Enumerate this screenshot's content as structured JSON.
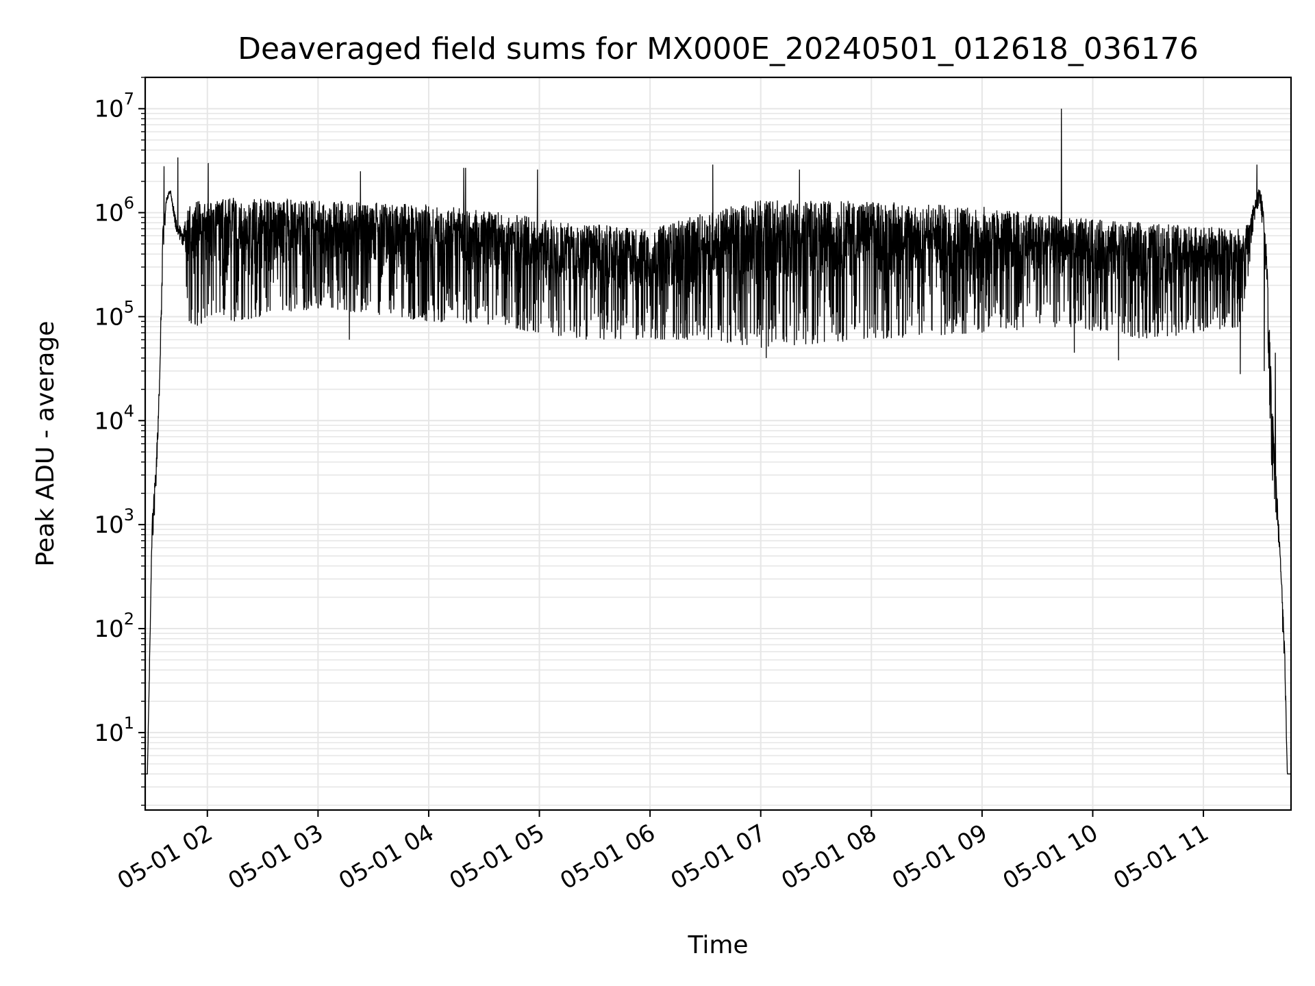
{
  "chart_data": {
    "type": "line",
    "title": "Deaveraged field sums for MX000E_20240501_012618_036176",
    "xlabel": "Time",
    "ylabel": "Peak ADU - average",
    "yscale": "log",
    "grid": "on (major and minor)",
    "line_color": "#000000",
    "grid_color": "#e6e6e6",
    "xlim": [
      "2024-05-01T01:26:18",
      "2024-05-01T11:47:30"
    ],
    "ylim": [
      1.8,
      20000000
    ],
    "x_ticks": [
      {
        "value": "2024-05-01T02:00",
        "label": "05-01 02"
      },
      {
        "value": "2024-05-01T03:00",
        "label": "05-01 03"
      },
      {
        "value": "2024-05-01T04:00",
        "label": "05-01 04"
      },
      {
        "value": "2024-05-01T05:00",
        "label": "05-01 05"
      },
      {
        "value": "2024-05-01T06:00",
        "label": "05-01 06"
      },
      {
        "value": "2024-05-01T07:00",
        "label": "05-01 07"
      },
      {
        "value": "2024-05-01T08:00",
        "label": "05-01 08"
      },
      {
        "value": "2024-05-01T09:00",
        "label": "05-01 09"
      },
      {
        "value": "2024-05-01T10:00",
        "label": "05-01 10"
      },
      {
        "value": "2024-05-01T11:00",
        "label": "05-01 11"
      }
    ],
    "y_ticks": [
      {
        "value": 10,
        "base": "10",
        "exp": "1"
      },
      {
        "value": 100,
        "base": "10",
        "exp": "2"
      },
      {
        "value": 1000,
        "base": "10",
        "exp": "3"
      },
      {
        "value": 10000,
        "base": "10",
        "exp": "4"
      },
      {
        "value": 100000,
        "base": "10",
        "exp": "5"
      },
      {
        "value": 1000000,
        "base": "10",
        "exp": "6"
      },
      {
        "value": 10000000,
        "base": "10",
        "exp": "7"
      }
    ],
    "envelope": [
      {
        "t": "2024-05-01T01:26:18",
        "low": 4,
        "high": 4
      },
      {
        "t": "2024-05-01T01:27:30",
        "low": 4,
        "high": 4
      },
      {
        "t": "2024-05-01T01:30:00",
        "low": 500,
        "high": 1100
      },
      {
        "t": "2024-05-01T01:32:00",
        "low": 2000,
        "high": 3500
      },
      {
        "t": "2024-05-01T01:34:00",
        "low": 15000,
        "high": 25000
      },
      {
        "t": "2024-05-01T01:36:00",
        "low": 400000,
        "high": 900000
      },
      {
        "t": "2024-05-01T01:38:00",
        "low": 1300000,
        "high": 1500000
      },
      {
        "t": "2024-05-01T01:40:00",
        "low": 1500000,
        "high": 1650000
      },
      {
        "t": "2024-05-01T01:43:00",
        "low": 650000,
        "high": 900000
      },
      {
        "t": "2024-05-01T01:47:00",
        "low": 450000,
        "high": 700000
      },
      {
        "t": "2024-05-01T01:50:00",
        "low": 80000,
        "high": 1300000
      },
      {
        "t": "2024-05-01T02:15:00",
        "low": 90000,
        "high": 1400000
      },
      {
        "t": "2024-05-01T03:00:00",
        "low": 120000,
        "high": 1300000
      },
      {
        "t": "2024-05-01T04:00:00",
        "low": 90000,
        "high": 1200000
      },
      {
        "t": "2024-05-01T04:40:00",
        "low": 80000,
        "high": 1000000
      },
      {
        "t": "2024-05-01T05:20:00",
        "low": 60000,
        "high": 800000
      },
      {
        "t": "2024-05-01T06:00:00",
        "low": 60000,
        "high": 700000
      },
      {
        "t": "2024-05-01T06:30:00",
        "low": 60000,
        "high": 1000000
      },
      {
        "t": "2024-05-01T07:00:00",
        "low": 50000,
        "high": 1350000
      },
      {
        "t": "2024-05-01T08:00:00",
        "low": 60000,
        "high": 1300000
      },
      {
        "t": "2024-05-01T09:00:00",
        "low": 70000,
        "high": 1150000
      },
      {
        "t": "2024-05-01T09:45:00",
        "low": 80000,
        "high": 900000
      },
      {
        "t": "2024-05-01T10:30:00",
        "low": 60000,
        "high": 800000
      },
      {
        "t": "2024-05-01T11:20:00",
        "low": 80000,
        "high": 700000
      },
      {
        "t": "2024-05-01T11:25:00",
        "low": 300000,
        "high": 800000
      },
      {
        "t": "2024-05-01T11:28:00",
        "low": 900000,
        "high": 1500000
      },
      {
        "t": "2024-05-01T11:31:00",
        "low": 1200000,
        "high": 1800000
      },
      {
        "t": "2024-05-01T11:34:00",
        "low": 200000,
        "high": 600000
      },
      {
        "t": "2024-05-01T11:37:00",
        "low": 3000,
        "high": 20000
      },
      {
        "t": "2024-05-01T11:40:00",
        "low": 1000,
        "high": 2000
      },
      {
        "t": "2024-05-01T11:44:00",
        "low": 40,
        "high": 80
      },
      {
        "t": "2024-05-01T11:45:30",
        "low": 4,
        "high": 4
      },
      {
        "t": "2024-05-01T11:47:30",
        "low": 4,
        "high": 4
      }
    ],
    "spikes": [
      {
        "t": "2024-05-01T01:36:30",
        "value": 2800000
      },
      {
        "t": "2024-05-01T01:44:00",
        "value": 3400000
      },
      {
        "t": "2024-05-01T02:00:30",
        "value": 3000000
      },
      {
        "t": "2024-05-01T03:23:00",
        "value": 2500000
      },
      {
        "t": "2024-05-01T04:19:00",
        "value": 2700000
      },
      {
        "t": "2024-05-01T04:20:00",
        "value": 2700000
      },
      {
        "t": "2024-05-01T04:59:00",
        "value": 2600000
      },
      {
        "t": "2024-05-01T06:34:00",
        "value": 2900000
      },
      {
        "t": "2024-05-01T07:21:00",
        "value": 2600000
      },
      {
        "t": "2024-05-01T09:43:00",
        "value": 10000000
      },
      {
        "t": "2024-05-01T11:29:00",
        "value": 2900000
      },
      {
        "t": "2024-05-01T11:39:00",
        "value": 45000
      },
      {
        "t": "2024-05-01T11:33:00",
        "value": 30000
      },
      {
        "t": "2024-05-01T11:20:00",
        "value": 28000
      },
      {
        "t": "2024-05-01T03:17:00",
        "value": 60000
      },
      {
        "t": "2024-05-01T07:03:00",
        "value": 40000
      },
      {
        "t": "2024-05-01T09:50:00",
        "value": 45000
      },
      {
        "t": "2024-05-01T10:14:00",
        "value": 38000
      }
    ]
  }
}
